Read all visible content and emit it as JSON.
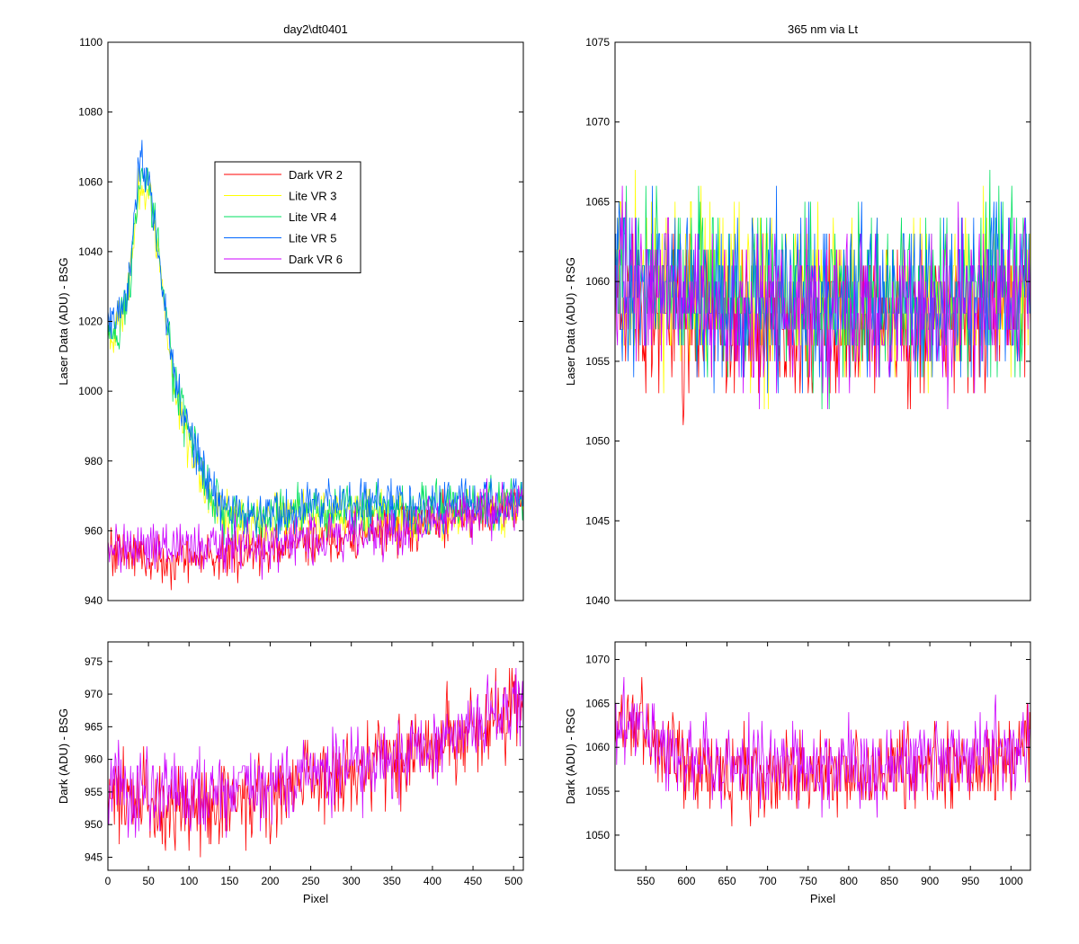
{
  "figure": {
    "background": "#ffffff"
  },
  "chart_data": [
    {
      "id": "bsg-laser",
      "type": "line",
      "title": "day2\\dt0401",
      "xlabel": "",
      "ylabel": "Laser Data (ADU) - BSG",
      "xlim": [
        0,
        512
      ],
      "ylim": [
        940,
        1100
      ],
      "xticks": [],
      "yticks": [
        940,
        960,
        980,
        1000,
        1020,
        1040,
        1060,
        1080,
        1100
      ],
      "grid": false,
      "legend": "inside-upper-middle",
      "series": [
        {
          "name": "Dark VR 2",
          "color": "#ff0000",
          "noise": 3.5,
          "anchors": [
            [
              0,
              955
            ],
            [
              50,
              952
            ],
            [
              100,
              952
            ],
            [
              150,
              953
            ],
            [
              200,
              955
            ],
            [
              250,
              957
            ],
            [
              300,
              958
            ],
            [
              350,
              960
            ],
            [
              400,
              962
            ],
            [
              450,
              965
            ],
            [
              480,
              966
            ],
            [
              512,
              968
            ]
          ]
        },
        {
          "name": "Lite VR 3",
          "color": "#ffff00",
          "noise": 3.5,
          "anchors": [
            [
              0,
              1018
            ],
            [
              10,
              1018
            ],
            [
              20,
              1024
            ],
            [
              25,
              1028
            ],
            [
              40,
              1060
            ],
            [
              50,
              1058
            ],
            [
              60,
              1042
            ],
            [
              70,
              1022
            ],
            [
              80,
              1005
            ],
            [
              90,
              993
            ],
            [
              100,
              985
            ],
            [
              120,
              972
            ],
            [
              140,
              965
            ],
            [
              170,
              963
            ],
            [
              200,
              963
            ],
            [
              250,
              965
            ],
            [
              300,
              965
            ],
            [
              350,
              964
            ],
            [
              400,
              963
            ],
            [
              450,
              965
            ],
            [
              512,
              968
            ]
          ]
        },
        {
          "name": "Lite VR 4",
          "color": "#00e060",
          "noise": 3.5,
          "anchors": [
            [
              0,
              1016
            ],
            [
              10,
              1016
            ],
            [
              20,
              1024
            ],
            [
              25,
              1028
            ],
            [
              40,
              1062
            ],
            [
              50,
              1058
            ],
            [
              60,
              1044
            ],
            [
              70,
              1024
            ],
            [
              80,
              1006
            ],
            [
              90,
              995
            ],
            [
              100,
              988
            ],
            [
              120,
              973
            ],
            [
              140,
              966
            ],
            [
              170,
              964
            ],
            [
              200,
              964
            ],
            [
              250,
              966
            ],
            [
              300,
              966
            ],
            [
              350,
              967
            ],
            [
              400,
              967
            ],
            [
              450,
              968
            ],
            [
              512,
              969
            ]
          ]
        },
        {
          "name": "Lite VR 5",
          "color": "#0066ff",
          "noise": 3.5,
          "anchors": [
            [
              0,
              1020
            ],
            [
              10,
              1020
            ],
            [
              20,
              1026
            ],
            [
              25,
              1030
            ],
            [
              40,
              1068
            ],
            [
              50,
              1060
            ],
            [
              60,
              1045
            ],
            [
              70,
              1025
            ],
            [
              80,
              1008
            ],
            [
              90,
              997
            ],
            [
              100,
              990
            ],
            [
              120,
              975
            ],
            [
              140,
              967
            ],
            [
              170,
              964
            ],
            [
              200,
              965
            ],
            [
              250,
              967
            ],
            [
              300,
              968
            ],
            [
              350,
              968
            ],
            [
              400,
              967
            ],
            [
              450,
              968
            ],
            [
              512,
              969
            ]
          ]
        },
        {
          "name": "Dark VR 6",
          "color": "#cc00ff",
          "noise": 3.5,
          "anchors": [
            [
              0,
              956
            ],
            [
              50,
              955
            ],
            [
              100,
              955
            ],
            [
              150,
              955
            ],
            [
              200,
              956
            ],
            [
              250,
              958
            ],
            [
              300,
              959
            ],
            [
              350,
              960
            ],
            [
              400,
              962
            ],
            [
              450,
              965
            ],
            [
              480,
              966
            ],
            [
              512,
              968
            ]
          ]
        }
      ]
    },
    {
      "id": "rsg-laser",
      "type": "line",
      "title": "365 nm via Lt",
      "xlabel": "",
      "ylabel": "Laser Data (ADU) - RSG",
      "xlim": [
        512,
        1024
      ],
      "ylim": [
        1040,
        1075
      ],
      "xticks": [],
      "yticks": [
        1040,
        1045,
        1050,
        1055,
        1060,
        1065,
        1070,
        1075
      ],
      "grid": false,
      "series": [
        {
          "name": "Dark VR 2",
          "color": "#ff0000",
          "noise": 2.4,
          "anchors": [
            [
              512,
              1060
            ],
            [
              560,
              1058
            ],
            [
              650,
              1057
            ],
            [
              750,
              1057
            ],
            [
              850,
              1057
            ],
            [
              950,
              1058
            ],
            [
              1024,
              1059
            ]
          ]
        },
        {
          "name": "Lite VR 3",
          "color": "#ffff00",
          "noise": 2.6,
          "anchors": [
            [
              512,
              1061
            ],
            [
              560,
              1060
            ],
            [
              650,
              1059
            ],
            [
              750,
              1059
            ],
            [
              850,
              1059
            ],
            [
              950,
              1059
            ],
            [
              1024,
              1060
            ]
          ]
        },
        {
          "name": "Lite VR 4",
          "color": "#00e060",
          "noise": 2.6,
          "anchors": [
            [
              512,
              1061
            ],
            [
              560,
              1060
            ],
            [
              650,
              1059
            ],
            [
              750,
              1059
            ],
            [
              850,
              1059
            ],
            [
              950,
              1059
            ],
            [
              1024,
              1060
            ]
          ]
        },
        {
          "name": "Lite VR 5",
          "color": "#0066ff",
          "noise": 2.6,
          "anchors": [
            [
              512,
              1061
            ],
            [
              560,
              1060
            ],
            [
              650,
              1059
            ],
            [
              750,
              1059
            ],
            [
              850,
              1059
            ],
            [
              950,
              1059
            ],
            [
              1024,
              1060
            ]
          ]
        },
        {
          "name": "Dark VR 6",
          "color": "#cc00ff",
          "noise": 2.3,
          "anchors": [
            [
              512,
              1061
            ],
            [
              560,
              1060
            ],
            [
              650,
              1058
            ],
            [
              750,
              1058
            ],
            [
              850,
              1058
            ],
            [
              950,
              1059
            ],
            [
              1024,
              1060
            ]
          ]
        }
      ]
    },
    {
      "id": "bsg-dark",
      "type": "line",
      "title": "",
      "xlabel": "Pixel",
      "ylabel": "Dark (ADU) - BSG",
      "xlim": [
        0,
        512
      ],
      "ylim": [
        943,
        978
      ],
      "xticks": [
        0,
        50,
        100,
        150,
        200,
        250,
        300,
        350,
        400,
        450,
        500
      ],
      "yticks": [
        945,
        950,
        955,
        960,
        965,
        970,
        975
      ],
      "grid": false,
      "series": [
        {
          "name": "Dark VR 2",
          "color": "#ff0000",
          "noise": 3.2,
          "anchors": [
            [
              0,
              955
            ],
            [
              50,
              953
            ],
            [
              100,
              953
            ],
            [
              150,
              953
            ],
            [
              200,
              955
            ],
            [
              250,
              957
            ],
            [
              300,
              958
            ],
            [
              350,
              960
            ],
            [
              400,
              962
            ],
            [
              450,
              965
            ],
            [
              480,
              966
            ],
            [
              512,
              968
            ]
          ]
        },
        {
          "name": "Dark VR 6",
          "color": "#cc00ff",
          "noise": 3.2,
          "anchors": [
            [
              0,
              956
            ],
            [
              50,
              955
            ],
            [
              100,
              955
            ],
            [
              150,
              955
            ],
            [
              200,
              956
            ],
            [
              250,
              958
            ],
            [
              300,
              959
            ],
            [
              350,
              960
            ],
            [
              400,
              962
            ],
            [
              450,
              965
            ],
            [
              480,
              967
            ],
            [
              512,
              969
            ]
          ]
        }
      ]
    },
    {
      "id": "rsg-dark",
      "type": "line",
      "title": "",
      "xlabel": "Pixel",
      "ylabel": "Dark (ADU) - RSG",
      "xlim": [
        512,
        1024
      ],
      "ylim": [
        1046,
        1072
      ],
      "xticks": [
        550,
        600,
        650,
        700,
        750,
        800,
        850,
        900,
        950,
        1000
      ],
      "yticks": [
        1050,
        1055,
        1060,
        1065,
        1070
      ],
      "grid": false,
      "series": [
        {
          "name": "Dark VR 2",
          "color": "#ff0000",
          "noise": 2.3,
          "anchors": [
            [
              512,
              1063
            ],
            [
              540,
              1062
            ],
            [
              580,
              1059
            ],
            [
              650,
              1057
            ],
            [
              750,
              1057
            ],
            [
              850,
              1057
            ],
            [
              950,
              1058
            ],
            [
              1024,
              1060
            ]
          ]
        },
        {
          "name": "Dark VR 6",
          "color": "#cc00ff",
          "noise": 2.3,
          "anchors": [
            [
              512,
              1063
            ],
            [
              540,
              1062
            ],
            [
              580,
              1060
            ],
            [
              650,
              1058
            ],
            [
              750,
              1058
            ],
            [
              850,
              1058
            ],
            [
              950,
              1059
            ],
            [
              1024,
              1060
            ]
          ]
        }
      ]
    }
  ]
}
